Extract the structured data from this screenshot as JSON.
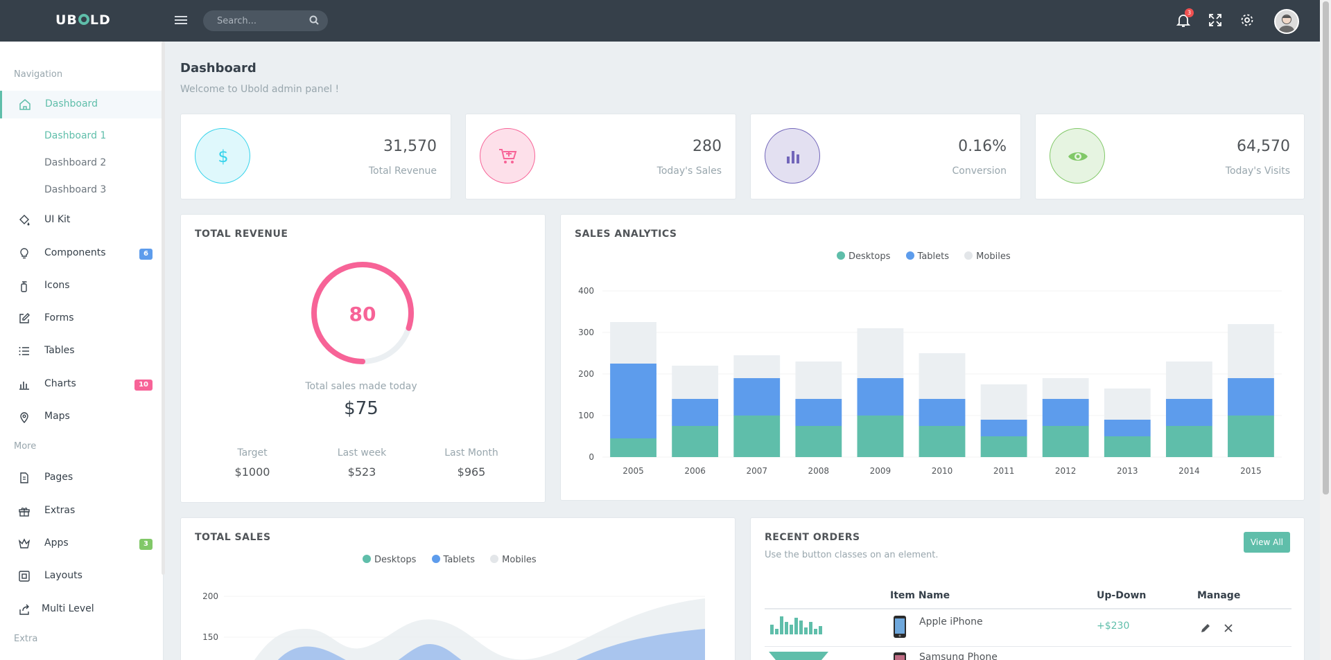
{
  "app": {
    "logo": "UBOLD"
  },
  "topbar": {
    "search_placeholder": "Search...",
    "notifications_count": "3"
  },
  "sidebar": {
    "section_navigation": "Navigation",
    "section_more": "More",
    "section_extra": "Extra",
    "dashboard": "Dashboard",
    "dashboard_subs": [
      "Dashboard 1",
      "Dashboard 2",
      "Dashboard 3"
    ],
    "items": [
      {
        "label": "UI Kit",
        "icon": "paint-bucket-icon"
      },
      {
        "label": "Components",
        "icon": "lightbulb-icon",
        "badge": "6",
        "badge_color": "#5d9cec"
      },
      {
        "label": "Icons",
        "icon": "fire-extinguisher-icon"
      },
      {
        "label": "Forms",
        "icon": "edit-icon"
      },
      {
        "label": "Tables",
        "icon": "list-icon"
      },
      {
        "label": "Charts",
        "icon": "bar-chart-icon",
        "badge": "10",
        "badge_color": "#f76397"
      },
      {
        "label": "Maps",
        "icon": "map-pin-icon"
      }
    ],
    "more_items": [
      {
        "label": "Pages",
        "icon": "pages-icon"
      },
      {
        "label": "Extras",
        "icon": "gift-icon"
      },
      {
        "label": "Apps",
        "icon": "crown-icon",
        "badge": "3",
        "badge_color": "#81c868"
      },
      {
        "label": "Layouts",
        "icon": "layout-icon"
      },
      {
        "label": "Multi Level",
        "icon": "share-icon"
      }
    ]
  },
  "page": {
    "title": "Dashboard",
    "subtitle": "Welcome to Ubold admin panel !"
  },
  "stats": [
    {
      "value": "31,570",
      "label": "Total Revenue",
      "icon": "dollar-icon",
      "color": "#34d3eb",
      "bg": "#dff8fc"
    },
    {
      "value": "280",
      "label": "Today's Sales",
      "icon": "cart-plus-icon",
      "color": "#f76397",
      "bg": "#fde0ea"
    },
    {
      "value": "0.16%",
      "label": "Conversion",
      "icon": "bar-chart-icon",
      "color": "#7266ba",
      "bg": "#e3e0f1"
    },
    {
      "value": "64,570",
      "label": "Today's Visits",
      "icon": "eye-icon",
      "color": "#81c868",
      "bg": "#e6f4e1"
    }
  ],
  "total_revenue": {
    "title": "TOTAL REVENUE",
    "gauge_value": "80",
    "gauge_percent": 80,
    "caption": "Total sales made today",
    "amount": "$75",
    "columns": [
      {
        "label": "Target",
        "value": "$1000"
      },
      {
        "label": "Last week",
        "value": "$523"
      },
      {
        "label": "Last Month",
        "value": "$965"
      }
    ]
  },
  "sales_analytics": {
    "title": "SALES ANALYTICS",
    "legend": [
      "Desktops",
      "Tablets",
      "Mobiles"
    ]
  },
  "total_sales": {
    "title": "TOTAL SALES",
    "legend": [
      "Desktops",
      "Tablets",
      "Mobiles"
    ]
  },
  "recent_orders": {
    "title": "RECENT ORDERS",
    "subtitle": "Use the button classes on an element.",
    "view_all": "View All",
    "headers": [
      "Item Name",
      "Up-Down",
      "Manage"
    ],
    "rows": [
      {
        "item": "Apple iPhone",
        "updown": "+$230"
      },
      {
        "item": "Samsung Phone",
        "updown": ""
      }
    ]
  },
  "colors": {
    "desktops": "#5fbeaa",
    "tablets": "#5d9cec",
    "mobiles": "#ebeff2",
    "accent": "#5fbeaa",
    "pink": "#f76397"
  },
  "chart_data": [
    {
      "type": "bar",
      "title": "SALES ANALYTICS",
      "stacked": true,
      "categories": [
        "2005",
        "2006",
        "2007",
        "2008",
        "2009",
        "2010",
        "2011",
        "2012",
        "2013",
        "2014",
        "2015"
      ],
      "series": [
        {
          "name": "Desktops",
          "values": [
            45,
            75,
            100,
            75,
            100,
            75,
            50,
            75,
            50,
            75,
            100
          ]
        },
        {
          "name": "Tablets",
          "values": [
            180,
            65,
            90,
            65,
            90,
            65,
            40,
            65,
            40,
            65,
            90
          ]
        },
        {
          "name": "Mobiles",
          "values": [
            100,
            80,
            55,
            90,
            120,
            110,
            85,
            50,
            75,
            90,
            130
          ]
        }
      ],
      "ylim": [
        0,
        400
      ],
      "yticks": [
        0,
        100,
        200,
        300,
        400
      ],
      "legend": "top-center",
      "grid": true
    },
    {
      "type": "area",
      "title": "TOTAL SALES",
      "yticks": [
        150,
        200
      ],
      "series": [
        {
          "name": "Desktops"
        },
        {
          "name": "Tablets"
        },
        {
          "name": "Mobiles"
        }
      ],
      "legend": "top-center"
    }
  ]
}
